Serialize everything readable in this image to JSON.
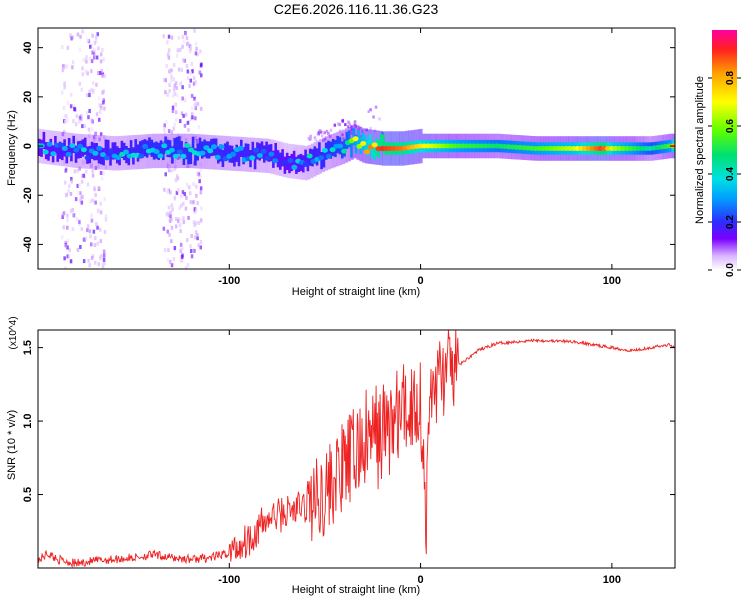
{
  "title": "C2E6.2026.116.11.36.G23",
  "chart_data": [
    {
      "type": "heatmap",
      "name": "spectrogram",
      "xlabel": "Height of straight line (km)",
      "ylabel": "Frequency (Hz)",
      "xlim": [
        -200,
        133
      ],
      "ylim": [
        -50,
        48
      ],
      "xticks": [
        -100,
        0,
        100
      ],
      "yticks": [
        -40,
        -20,
        0,
        20,
        40
      ],
      "colorbar": {
        "label": "Normalized spectral amplitude",
        "range": [
          0,
          1
        ],
        "ticks": [
          "0.0",
          "0.2",
          "0.4",
          "0.6",
          "0.8"
        ],
        "colormap": [
          "#ffffff",
          "#d9b3ff",
          "#7a00ff",
          "#2d2dff",
          "#00a0ff",
          "#00e0e0",
          "#00e070",
          "#60ff00",
          "#ffff00",
          "#ffa000",
          "#ff2020",
          "#ff00a0"
        ]
      },
      "ridge": {
        "x": [
          -200,
          -180,
          -160,
          -140,
          -120,
          -100,
          -80,
          -70,
          -60,
          -50,
          -40,
          -35,
          -30,
          -20,
          -10,
          0,
          20,
          40,
          60,
          80,
          95,
          100,
          120,
          130,
          133
        ],
        "freq": [
          0,
          -2,
          -3,
          -2,
          -2,
          -3,
          -4,
          -6,
          -7,
          -3,
          0,
          2,
          0,
          -1,
          -1,
          0,
          0,
          0,
          -1,
          -1,
          -1,
          -1,
          -1,
          0,
          0
        ],
        "amplitude": [
          0.35,
          0.4,
          0.4,
          0.45,
          0.45,
          0.42,
          0.4,
          0.35,
          0.4,
          0.45,
          0.5,
          0.6,
          0.7,
          0.9,
          0.85,
          0.75,
          0.6,
          0.55,
          0.6,
          0.7,
          0.9,
          0.7,
          0.5,
          0.6,
          0.9
        ]
      }
    },
    {
      "type": "line",
      "name": "snr",
      "color": "#ee2222",
      "xlabel": "Height of straight line (km)",
      "ylabel": "SNR (10 * v/v)",
      "scale_note": "(x10^4)",
      "xlim": [
        -200,
        133
      ],
      "ylim": [
        0,
        1.62
      ],
      "xticks": [
        -100,
        0,
        100
      ],
      "yticks": [
        0.5,
        1.0,
        1.5
      ],
      "ytick_labels": [
        "0.5",
        "1.0",
        "1.5"
      ],
      "x": [
        -200,
        -195,
        -190,
        -180,
        -170,
        -160,
        -150,
        -140,
        -130,
        -120,
        -110,
        -100,
        -90,
        -80,
        -70,
        -60,
        -50,
        -40,
        -30,
        -20,
        -10,
        0,
        3,
        5,
        10,
        20,
        30,
        40,
        60,
        80,
        90,
        100,
        110,
        120,
        130,
        133
      ],
      "y": [
        0.05,
        0.1,
        0.06,
        0.03,
        0.05,
        0.06,
        0.07,
        0.09,
        0.07,
        0.06,
        0.07,
        0.1,
        0.2,
        0.33,
        0.38,
        0.42,
        0.52,
        0.68,
        0.85,
        0.92,
        1.05,
        1.15,
        0.3,
        1.2,
        1.3,
        1.38,
        1.48,
        1.53,
        1.55,
        1.54,
        1.52,
        1.5,
        1.48,
        1.5,
        1.52,
        1.5
      ]
    }
  ]
}
